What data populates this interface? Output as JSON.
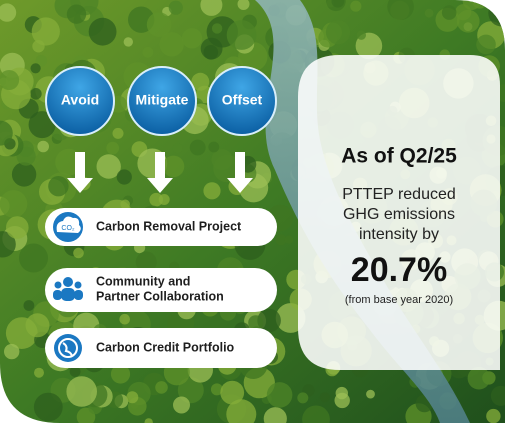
{
  "pillars": [
    "Avoid",
    "Mitigate",
    "Offset"
  ],
  "actions": [
    {
      "icon": "CO₂",
      "lines": [
        "Carbon Removal Project"
      ]
    },
    {
      "lines": [
        "Community and",
        "Partner Collaboration"
      ]
    },
    {
      "lines": [
        "Carbon Credit Portfolio"
      ]
    }
  ],
  "panel": {
    "title": "As of Q2/25",
    "text_lines": [
      "PTTEP reduced",
      "GHG emissions",
      "intensity by"
    ],
    "figure": "20.7%",
    "note": "(from base year 2020)"
  }
}
